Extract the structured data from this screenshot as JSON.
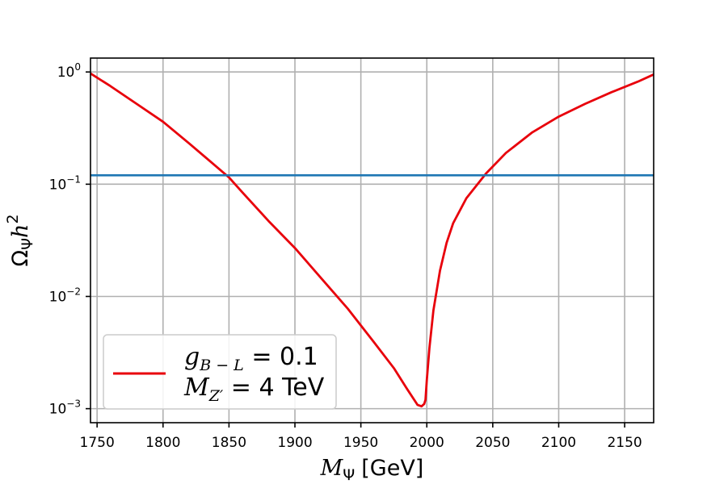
{
  "chart_data": {
    "type": "line",
    "xlabel": {
      "symbol": "M",
      "sub": "Ψ",
      "unit": "[GeV]"
    },
    "ylabel": {
      "symbol": "Ω",
      "sub": "Ψ",
      "tail": "h",
      "sup": "2"
    },
    "xlim": [
      1745,
      2172
    ],
    "ylim": [
      0.00075,
      1.33
    ],
    "yscale": "log",
    "grid": true,
    "x_ticks": [
      1750,
      1800,
      1850,
      1900,
      1950,
      2000,
      2050,
      2100,
      2150
    ],
    "x_tick_labels": [
      "1750",
      "1800",
      "1850",
      "1900",
      "1950",
      "2000",
      "2050",
      "2100",
      "2150"
    ],
    "y_ticks": [
      1,
      0.1,
      0.01,
      0.001
    ],
    "y_tick_labels": [
      {
        "base": "10",
        "exp": "0"
      },
      {
        "base": "10",
        "exp": "−1"
      },
      {
        "base": "10",
        "exp": "−2"
      },
      {
        "base": "10",
        "exp": "−3"
      }
    ],
    "series": [
      {
        "color": "#e8000b",
        "x": [
          1745,
          1760,
          1780,
          1800,
          1820,
          1840,
          1850,
          1860,
          1880,
          1900,
          1920,
          1940,
          1960,
          1975,
          1985,
          1993,
          1996,
          1998,
          1999,
          2000,
          2002,
          2005,
          2010,
          2015,
          2020,
          2030,
          2045,
          2060,
          2080,
          2100,
          2120,
          2140,
          2160,
          2172
        ],
        "y": [
          0.97,
          0.75,
          0.52,
          0.36,
          0.23,
          0.145,
          0.115,
          0.085,
          0.047,
          0.027,
          0.0145,
          0.0078,
          0.0039,
          0.0023,
          0.0015,
          0.00108,
          0.00105,
          0.0011,
          0.0012,
          0.0018,
          0.0035,
          0.0075,
          0.017,
          0.03,
          0.045,
          0.075,
          0.125,
          0.19,
          0.29,
          0.4,
          0.52,
          0.66,
          0.82,
          0.95
        ]
      },
      {
        "color": "#1f77b4",
        "x": [
          1745,
          2172
        ],
        "y": [
          0.12,
          0.12
        ]
      }
    ],
    "legend": {
      "placement": "lower-left",
      "line1": {
        "symbol": "g",
        "sub": "B − L",
        "rest": " = 0.1"
      },
      "line2": {
        "symbol": "M",
        "sub": "Z′",
        "rest": " = 4 TeV"
      }
    }
  }
}
